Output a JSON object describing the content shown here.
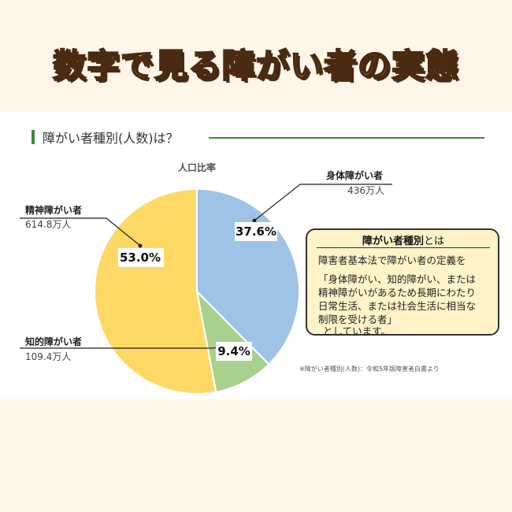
{
  "header": {
    "title": "数字で見る障がい者の実態"
  },
  "section": {
    "title": "障がい者種別(人数)は？"
  },
  "chart_data": {
    "type": "pie",
    "title": "人口比率",
    "slices": [
      {
        "name": "身体障がい者",
        "value_text": "436万人",
        "value": 436,
        "percent": 37.6,
        "percent_label": "37.6%",
        "color": "#9fc3e7"
      },
      {
        "name": "知的障がい者",
        "value_text": "109.4万人",
        "value": 109.4,
        "percent": 9.4,
        "percent_label": "9.4%",
        "color": "#a9d18e"
      },
      {
        "name": "精神障がい者",
        "value_text": "614.8万人",
        "value": 614.8,
        "percent": 53.0,
        "percent_label": "53.0%",
        "color": "#ffd966"
      }
    ]
  },
  "info": {
    "title_bold": "障がい者種別",
    "title_rest": "とは",
    "lines": [
      "障害者基本法で障がい者の定義を",
      "「身体障がい、知的障がい、または",
      "精神障がいがあるため長期にわたり",
      "日常生活、または社会生活に相当な",
      "制限を受ける者」",
      "としています。"
    ]
  },
  "source": "※障がい者種別(人数)：令和5年版障害者白書より",
  "colors": {
    "accent": "#f08a1c",
    "green": "#3f8a3a",
    "background": "#fff6ea"
  }
}
